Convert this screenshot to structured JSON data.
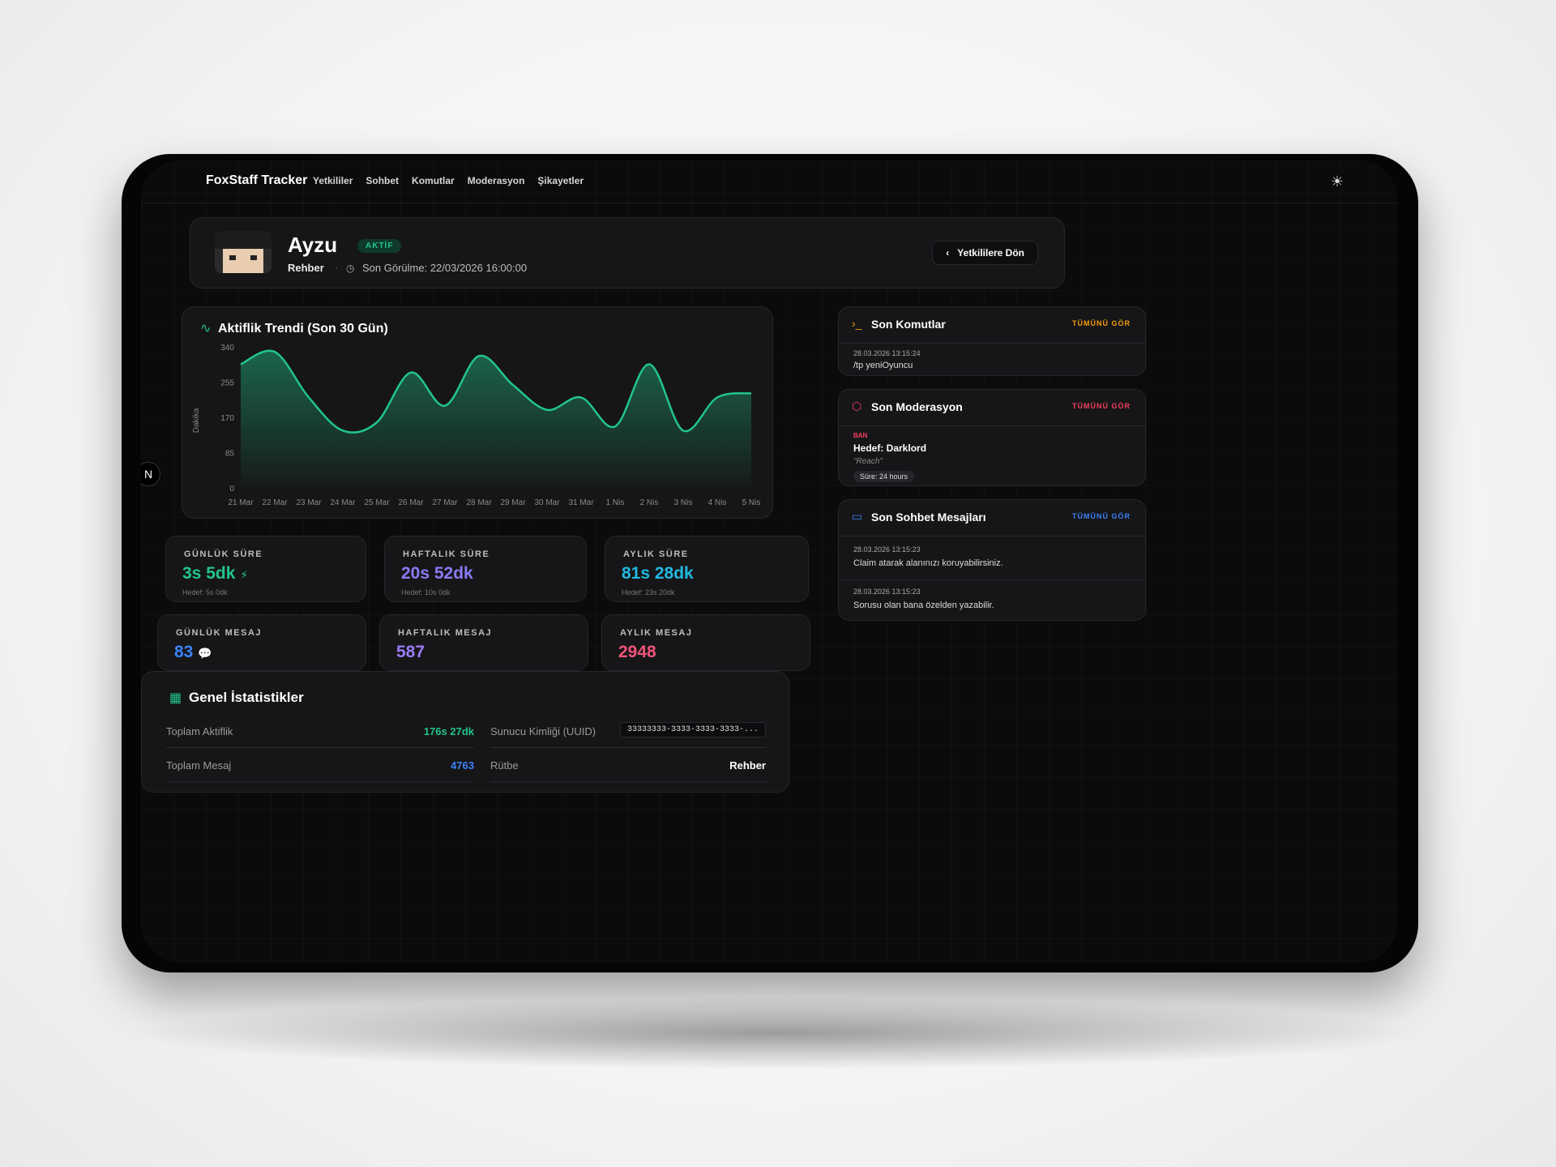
{
  "app": {
    "brand": "FoxStaff Tracker"
  },
  "nav": [
    "Yetkililer",
    "Sohbet",
    "Komutlar",
    "Moderasyon",
    "Şikayetler"
  ],
  "profile": {
    "name": "Ayzu",
    "status": "AKTİF",
    "rank": "Rehber",
    "last_seen": "Son Görülme: 22/03/2026 16:00:00",
    "back_label": "Yetkililere Dön"
  },
  "activity": {
    "title": "Aktiflik Trendi (Son 30 Gün)",
    "ylabel": "Dakika"
  },
  "chart_data": {
    "type": "area",
    "ylim": [
      0,
      340
    ],
    "yticks": [
      0,
      85,
      170,
      255,
      340
    ],
    "categories": [
      "21 Mar",
      "22 Mar",
      "23 Mar",
      "24 Mar",
      "25 Mar",
      "26 Mar",
      "27 Mar",
      "28 Mar",
      "29 Mar",
      "30 Mar",
      "31 Mar",
      "1 Nis",
      "2 Nis",
      "3 Nis",
      "4 Nis",
      "5 Nis"
    ],
    "x_labels": [
      "21 Mar",
      "22 Mar",
      "23 Mar",
      "24 Mar",
      "25 Mar",
      "26 Mar",
      "27 Mar",
      "28 Mar",
      "29 Mar",
      "30 Mar",
      "31 Mar",
      "1 Nis",
      "2 Nis",
      "3 Nis",
      "4 Nis",
      "5 Nis"
    ],
    "values": [
      300,
      330,
      220,
      140,
      160,
      280,
      200,
      320,
      250,
      190,
      220,
      150,
      300,
      140,
      220,
      230
    ],
    "color": "#22c58c",
    "grid": false
  },
  "stats": [
    {
      "label": "GÜNLÜK SÜRE",
      "value": "3s 5dk",
      "sub": "Hedef: 5s 0dk",
      "color": "#22c58c",
      "icon": "⚡"
    },
    {
      "label": "HAFTALIK SÜRE",
      "value": "20s 52dk",
      "sub": "Hedef: 10s 0dk",
      "color": "#8b7cf6"
    },
    {
      "label": "AYLIK SÜRE",
      "value": "81s 28dk",
      "sub": "Hedef: 23s 20dk",
      "color": "#22b8e0"
    },
    {
      "label": "GÜNLÜK MESAJ",
      "value": "83",
      "color": "#3b82f6",
      "icon": "💬"
    },
    {
      "label": "HAFTALIK MESAJ",
      "value": "587",
      "color": "#9a7cf6"
    },
    {
      "label": "AYLIK MESAJ",
      "value": "2948",
      "color": "#f0547a"
    }
  ],
  "general": {
    "title": "Genel İstatistikler",
    "total_activity_label": "Toplam Aktiflik",
    "total_activity_value": "176s 27dk",
    "total_messages_label": "Toplam Mesaj",
    "total_messages_value": "4763",
    "uuid_label": "Sunucu Kimliği (UUID)",
    "uuid_value": "33333333-3333-3333-3333-...",
    "rank_label": "Rütbe",
    "rank_value": "Rehber"
  },
  "commands": {
    "title": "Son Komutlar",
    "see_all": "TÜMÜNÜ GÖR",
    "items": [
      {
        "time": "28.03.2026 13:15:24",
        "text": "/tp yeniOyuncu"
      }
    ]
  },
  "moderation": {
    "title": "Son Moderasyon",
    "see_all": "TÜMÜNÜ GÖR",
    "type": "BAN",
    "target": "Hedef: Darklord",
    "reason": "\"Reach\"",
    "duration": "Süre: 24 hours"
  },
  "chat": {
    "title": "Son Sohbet Mesajları",
    "see_all": "TÜMÜNÜ GÖR",
    "items": [
      {
        "time": "28.03.2026 13:15:23",
        "text": "Claim atarak alanınızı koruyabilirsiniz."
      },
      {
        "time": "28.03.2026 13:15:23",
        "text": "Sorusu olan bana özelden yazabilir."
      }
    ]
  },
  "colors": {
    "accent": "#22c58c",
    "orange": "#f59e0b",
    "red": "#f43f5e",
    "blue": "#3b82f6"
  }
}
